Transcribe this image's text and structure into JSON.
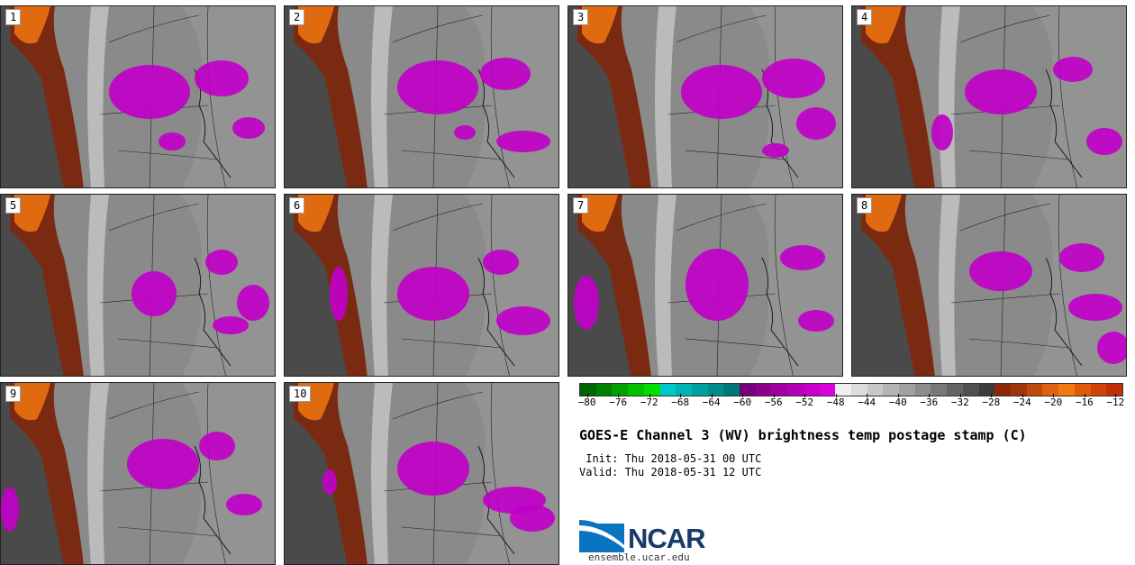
{
  "panels": [
    {
      "label": "1"
    },
    {
      "label": "2"
    },
    {
      "label": "3"
    },
    {
      "label": "4"
    },
    {
      "label": "5"
    },
    {
      "label": "6"
    },
    {
      "label": "7"
    },
    {
      "label": "8"
    },
    {
      "label": "9"
    },
    {
      "label": "10"
    }
  ],
  "colorbar": {
    "colors": [
      "#006400",
      "#008000",
      "#00a000",
      "#00c000",
      "#00e000",
      "#00c8c8",
      "#00b4b4",
      "#00a0a0",
      "#008c8c",
      "#007878",
      "#780078",
      "#8c008c",
      "#a000a0",
      "#b400b4",
      "#c800c8",
      "#dc00dc",
      "#f0f0f0",
      "#dcdcdc",
      "#c8c8c8",
      "#b4b4b4",
      "#a0a0a0",
      "#8c8c8c",
      "#787878",
      "#646464",
      "#505050",
      "#3c3c3c",
      "#8b2a0a",
      "#a0360a",
      "#c04a0a",
      "#e06010",
      "#f07a10",
      "#e05a0a",
      "#d04408",
      "#c03006"
    ],
    "ticks": [
      "−80",
      "−76",
      "−72",
      "−68",
      "−64",
      "−60",
      "−56",
      "−52",
      "−48",
      "−44",
      "−40",
      "−36",
      "−32",
      "−28",
      "−24",
      "−20",
      "−16",
      "−12"
    ],
    "min": -81,
    "max": -11
  },
  "title": "GOES-E Channel 3 (WV) brightness temp postage stamp (C)",
  "init_line": " Init: Thu 2018-05-31 00 UTC",
  "valid_line": "Valid: Thu 2018-05-31 12 UTC",
  "logo_text": "NCAR",
  "url": "ensemble.ucar.edu"
}
